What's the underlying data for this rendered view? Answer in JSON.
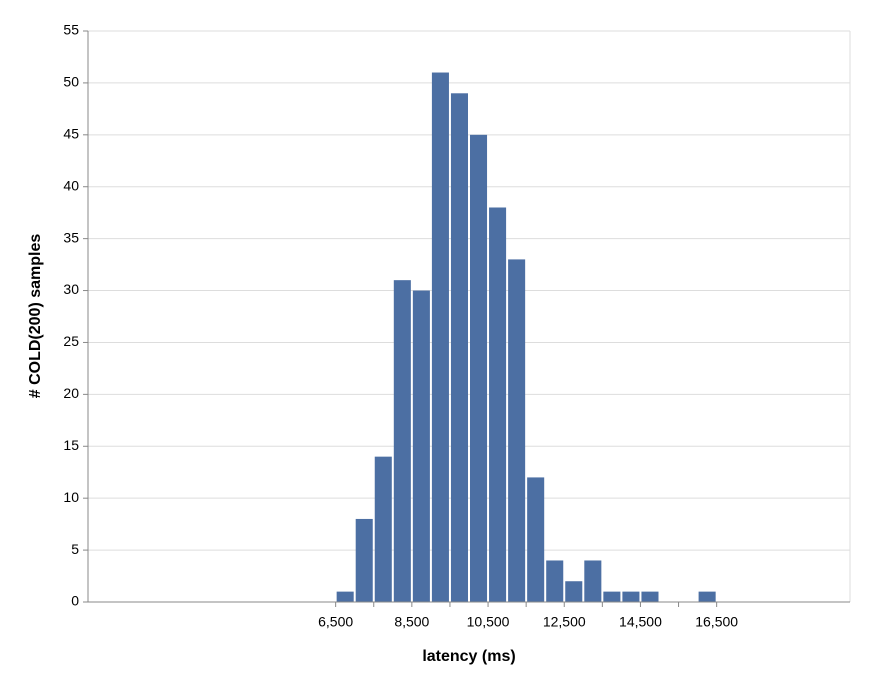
{
  "chart_data": {
    "type": "histogram",
    "x_label": "latency (ms)",
    "y_label": "# COLD(200) samples",
    "bins": [
      6500,
      7000,
      7500,
      8000,
      8500,
      9000,
      9500,
      10000,
      10500,
      11000,
      11500,
      12000,
      12500,
      13000,
      13500,
      14000,
      14500,
      15000,
      15500,
      16000,
      16500
    ],
    "values": [
      1,
      8,
      14,
      31,
      30,
      51,
      49,
      45,
      38,
      33,
      12,
      4,
      2,
      4,
      1,
      1,
      1,
      0,
      0,
      1
    ],
    "color": "#4c6fa3",
    "xlim": [
      0,
      20000
    ],
    "xticks": [
      {
        "value": 6500,
        "label": "6,500"
      },
      {
        "value": 8500,
        "label": "8,500"
      },
      {
        "value": 10500,
        "label": "10,500"
      },
      {
        "value": 12500,
        "label": "12,500"
      },
      {
        "value": 14500,
        "label": "14,500"
      },
      {
        "value": 16500,
        "label": "16,500"
      }
    ],
    "xminorticks": [
      7500,
      9500,
      11500,
      13500,
      15500
    ],
    "ylim": [
      0,
      55
    ],
    "yticks": [
      0,
      5,
      10,
      15,
      20,
      25,
      30,
      35,
      40,
      45,
      50,
      55
    ],
    "grid": true
  }
}
